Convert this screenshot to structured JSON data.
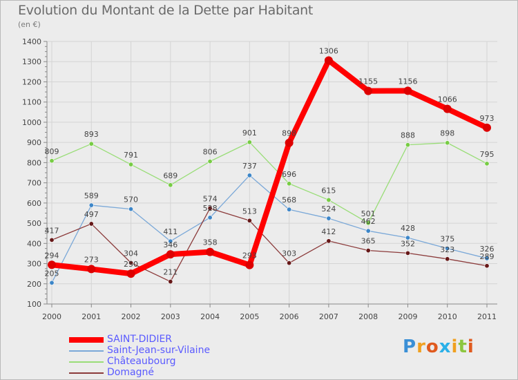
{
  "title": "Evolution du Montant de la Dette par Habitant",
  "subtitle": "(en €)",
  "logo": {
    "text": "Proxiti",
    "colors": [
      "#3a8fd6",
      "#f0a020",
      "#e05a1e",
      "#2ab0e8",
      "#f0a020",
      "#8cc63f",
      "#e05a1e"
    ]
  },
  "chart_data": {
    "type": "line",
    "title": "Evolution du Montant de la Dette par Habitant",
    "ylabel": "(en €)",
    "xlabel": "",
    "ylim": [
      100,
      1400
    ],
    "yticks": [
      "100",
      "200",
      "300",
      "400",
      "500",
      "600",
      "700",
      "800",
      "900",
      "1000",
      "1100",
      "1200",
      "1300",
      "1400"
    ],
    "categories": [
      "2000",
      "2001",
      "2002",
      "2003",
      "2004",
      "2005",
      "2006",
      "2007",
      "2008",
      "2009",
      "2010",
      "2011"
    ],
    "grid": true,
    "legend": "bottom-left",
    "series": [
      {
        "name": "SAINT-DIDIER",
        "color": "#ff0000",
        "point_color": "#dd0000",
        "values": [
          294,
          273,
          250,
          346,
          358,
          293,
          898,
          1306,
          1155,
          1156,
          1066,
          973
        ],
        "labels": [
          "294",
          "273",
          "250",
          "346",
          "358",
          "293",
          "898",
          "1306",
          "1155",
          "1156",
          "1066",
          "973"
        ]
      },
      {
        "name": "Saint-Jean-sur-Vilaine",
        "color": "#7aa8d8",
        "point_color": "#3d86c8",
        "values": [
          205,
          589,
          570,
          411,
          528,
          737,
          568,
          524,
          462,
          428,
          375,
          326
        ],
        "labels": [
          "205",
          "589",
          "570",
          "411",
          "528",
          "737",
          "568",
          "524",
          "462",
          "428",
          "375",
          "326"
        ]
      },
      {
        "name": "Châteaubourg",
        "color": "#99dd77",
        "point_color": "#77cc44",
        "values": [
          809,
          893,
          791,
          689,
          806,
          901,
          696,
          615,
          501,
          888,
          898,
          795
        ],
        "labels": [
          "809",
          "893",
          "791",
          "689",
          "806",
          "901",
          "696",
          "615",
          "501",
          "888",
          "898",
          "795"
        ]
      },
      {
        "name": "Domagné",
        "color": "#8b3a3a",
        "point_color": "#661818",
        "values": [
          417,
          497,
          304,
          211,
          574,
          513,
          303,
          412,
          365,
          352,
          323,
          289
        ],
        "labels": [
          "417",
          "497",
          "304",
          "211",
          "574",
          "513",
          "303",
          "412",
          "365",
          "352",
          "323",
          "289"
        ]
      }
    ]
  }
}
